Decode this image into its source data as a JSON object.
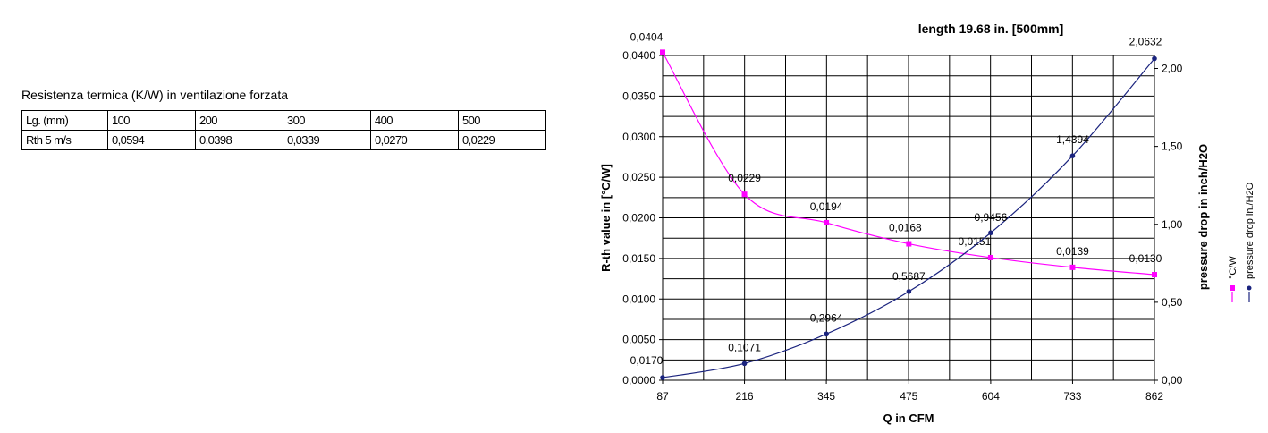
{
  "table_section": {
    "caption": "Resistenza termica (K/W) in ventilazione forzata",
    "header_row": [
      "Lg. (mm)",
      "100",
      "200",
      "300",
      "400",
      "500"
    ],
    "data_row": [
      "Rth 5 m/s",
      "0,0594",
      "0,0398",
      "0,0339",
      "0,0270",
      "0,0229"
    ]
  },
  "chart_data": {
    "type": "line",
    "title": "length 19.68 in. [500mm]",
    "xlabel": "Q in CFM",
    "ylabel_left": "R-th value in [°C/W]",
    "ylabel_right": "pressure drop in inch/H2O",
    "categories": [
      "87",
      "216",
      "345",
      "475",
      "604",
      "733",
      "862"
    ],
    "y_left_ticks": [
      "0,0000",
      "0,0050",
      "0,0100",
      "0,0150",
      "0,0200",
      "0,0250",
      "0,0300",
      "0,0350",
      "0,0400"
    ],
    "y_left_range": [
      0,
      0.04
    ],
    "y_right_ticks": [
      "0,00",
      "0,50",
      "1,00",
      "1,50",
      "2,00"
    ],
    "y_right_range": [
      0,
      2.0833
    ],
    "grid": true,
    "legend_position": "right",
    "series": [
      {
        "name": "°C/W",
        "axis": "left",
        "color": "#ff00ff",
        "marker": "square",
        "x": [
          87,
          216,
          345,
          475,
          604,
          733,
          862
        ],
        "values": [
          0.0404,
          0.0229,
          0.0194,
          0.0168,
          0.0151,
          0.0139,
          0.013
        ],
        "labels": [
          "0,0404",
          "0,0229",
          "0,0194",
          "0,0168",
          "0,0151",
          "0,0139",
          "0,0130"
        ]
      },
      {
        "name": "pressure drop in./H2O",
        "axis": "right",
        "color": "#1a237e",
        "marker": "circle",
        "x": [
          87,
          216,
          345,
          475,
          604,
          733,
          862
        ],
        "values": [
          0.017,
          0.1071,
          0.2964,
          0.5687,
          0.9456,
          1.4394,
          2.0632
        ],
        "labels": [
          "0,0170",
          "0,1071",
          "0,2964",
          "0,5687",
          "0,9456",
          "1,4394",
          "2,0632"
        ]
      }
    ]
  }
}
